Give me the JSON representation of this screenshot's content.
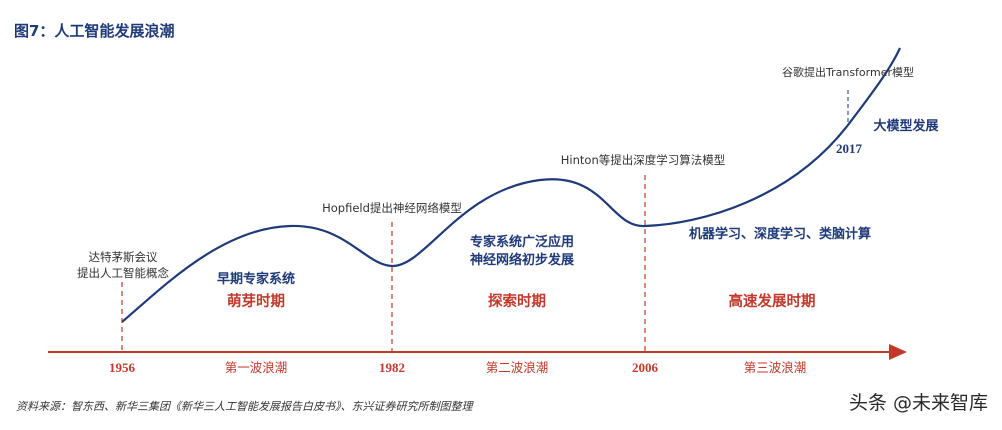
{
  "figure_title": "图7：人工智能发展浪潮",
  "events": {
    "dartmouth_line1": "达特茅斯会议",
    "dartmouth_line2": "提出人工智能概念",
    "hopfield": "Hopfield提出神经网络模型",
    "hinton": "Hinton等提出深度学习算法模型",
    "google": "谷歌提出Transformer模型"
  },
  "stage_notes": {
    "early_expert": "早期专家系统",
    "expert_line1": "专家系统广泛应用",
    "expert_line2": "神经网络初步发展",
    "ml_dl": "机器学习、深度学习、类脑计算",
    "big_model": "大模型发展"
  },
  "periods": [
    "萌芽时期",
    "探索时期",
    "高速发展时期"
  ],
  "years": [
    "1956",
    "1982",
    "2006"
  ],
  "year_2017": "2017",
  "waves": [
    "第一波浪潮",
    "第二波浪潮",
    "第三波浪潮"
  ],
  "colors": {
    "navy": "#1f3a78",
    "red": "#c0392b",
    "gray_line": "#2a5aa0"
  },
  "source": "资料来源：智东西、新华三集团《新华三人工智能发展报告白皮书》、东兴证券研究所制图整理",
  "watermark": "头条 @未来智库"
}
